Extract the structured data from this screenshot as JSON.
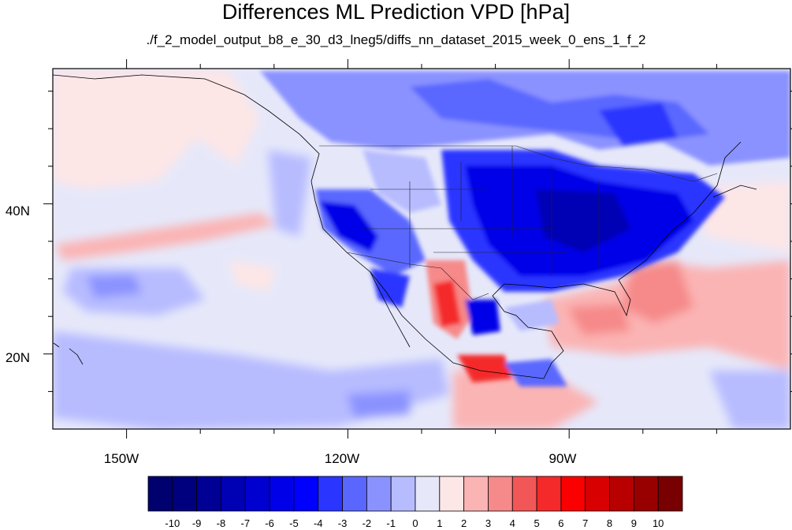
{
  "title": "Differences ML Prediction VPD [hPa]",
  "subtitle": "./f_2_model_output_b8_e_30_d3_lneg5/diffs_nn_dataset_2015_week_0_ens_1_f_2",
  "map": {
    "projection": "cylindrical equidistant",
    "lon_range": [
      -160,
      -60
    ],
    "lat_range": [
      10,
      58
    ],
    "lon_ticks": [
      "150W",
      "120W",
      "90W"
    ],
    "lat_ticks": [
      "40N",
      "20N"
    ],
    "features": [
      "coastlines",
      "country borders",
      "US state borders"
    ],
    "ocean_field": "near zero, light blue/pink patches",
    "land_patterns": [
      "strong negative (blue) over central and eastern United States and Canada",
      "negative over western US intermountain region",
      "positive (red) over northern Mexico Sierra Madre and southern Mexico",
      "positive over Gulf of Mexico east and western Atlantic"
    ]
  },
  "colorbar": {
    "labels": [
      "-10",
      "-9",
      "-8",
      "-7",
      "-6",
      "-5",
      "-4",
      "-3",
      "-2",
      "-1",
      "0",
      "1",
      "2",
      "3",
      "4",
      "5",
      "6",
      "7",
      "8",
      "9",
      "10"
    ],
    "colors": [
      "#00006e",
      "#000094",
      "#0000b4",
      "#0000d0",
      "#0000e8",
      "#0000ff",
      "#2a35ff",
      "#5a67ff",
      "#8a92ff",
      "#b7bcff",
      "#e6e8fa",
      "#fde6e6",
      "#fbb4b4",
      "#f68989",
      "#f25757",
      "#f42a2a",
      "#fb0000",
      "#d80000",
      "#b80000",
      "#980000",
      "#780000"
    ]
  }
}
